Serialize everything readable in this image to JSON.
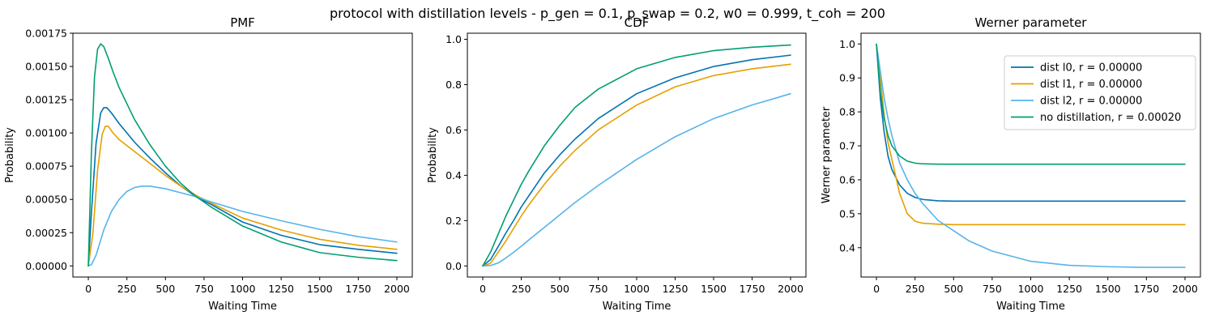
{
  "suptitle": "protocol with distillation levels - p_gen = 0.1, p_swap = 0.2, w0 = 0.999, t_coh = 200",
  "chart_data": [
    {
      "type": "line",
      "title": "PMF",
      "xlabel": "Waiting Time",
      "ylabel": "Probability",
      "xlim": [
        -100,
        2100
      ],
      "ylim": [
        -8.35e-05,
        0.00175
      ],
      "xticks": [
        0,
        250,
        500,
        750,
        1000,
        1250,
        1500,
        1750,
        2000
      ],
      "xtick_labels": [
        "0",
        "250",
        "500",
        "750",
        "1000",
        "1250",
        "1500",
        "1750",
        "2000"
      ],
      "yticks": [
        0,
        0.00025,
        0.0005,
        0.00075,
        0.001,
        0.00125,
        0.0015,
        0.00175
      ],
      "ytick_labels": [
        "0.00000",
        "0.00025",
        "0.00050",
        "0.00075",
        "0.00100",
        "0.00125",
        "0.00150",
        "0.00175"
      ],
      "grid": false,
      "series": [
        {
          "color": "#0072B2",
          "x": [
            0,
            20,
            50,
            80,
            100,
            120,
            150,
            200,
            300,
            400,
            500,
            600,
            700,
            750,
            800,
            1000,
            1250,
            1500,
            1750,
            2000
          ],
          "values": [
            0,
            0.0004,
            0.00092,
            0.00115,
            0.00119,
            0.00119,
            0.00115,
            0.00107,
            0.00093,
            0.00081,
            0.0007,
            0.0006,
            0.00052,
            0.00049,
            0.00046,
            0.00033,
            0.00023,
            0.00016,
            0.000125,
            9.5e-05
          ]
        },
        {
          "color": "#E69F00",
          "x": [
            0,
            30,
            60,
            90,
            110,
            130,
            160,
            200,
            300,
            400,
            500,
            600,
            700,
            750,
            800,
            1000,
            1250,
            1500,
            1750,
            2000
          ],
          "values": [
            0,
            0.00025,
            0.00072,
            0.00099,
            0.00105,
            0.00105,
            0.001,
            0.00095,
            0.00086,
            0.00077,
            0.00068,
            0.0006,
            0.00053,
            0.0005,
            0.00047,
            0.00036,
            0.00027,
            0.0002,
            0.000155,
            0.000125
          ]
        },
        {
          "color": "#56B4E9",
          "x": [
            0,
            20,
            50,
            100,
            150,
            200,
            250,
            300,
            350,
            400,
            450,
            500,
            600,
            700,
            750,
            800,
            1000,
            1250,
            1500,
            1750,
            2000
          ],
          "values": [
            0,
            1e-05,
            8e-05,
            0.00027,
            0.00041,
            0.0005,
            0.00056,
            0.00059,
            0.0006,
            0.0006,
            0.00059,
            0.00058,
            0.00055,
            0.00052,
            0.0005,
            0.00048,
            0.00041,
            0.00034,
            0.000275,
            0.00022,
            0.00018
          ]
        },
        {
          "color": "#009E73",
          "x": [
            0,
            20,
            40,
            60,
            80,
            100,
            130,
            160,
            200,
            300,
            400,
            500,
            600,
            700,
            750,
            800,
            1000,
            1250,
            1500,
            1750,
            2000
          ],
          "values": [
            0,
            0.00085,
            0.00142,
            0.00163,
            0.00167,
            0.00165,
            0.00156,
            0.00146,
            0.00134,
            0.0011,
            0.00091,
            0.00075,
            0.00062,
            0.00052,
            0.00048,
            0.00044,
            0.0003,
            0.00018,
            0.0001,
            6.5e-05,
            4e-05
          ]
        }
      ]
    },
    {
      "type": "line",
      "title": "CDF",
      "xlabel": "Waiting Time",
      "ylabel": "Probability",
      "xlim": [
        -100,
        2100
      ],
      "ylim": [
        -0.0489,
        1.0269
      ],
      "xticks": [
        0,
        250,
        500,
        750,
        1000,
        1250,
        1500,
        1750,
        2000
      ],
      "xtick_labels": [
        "0",
        "250",
        "500",
        "750",
        "1000",
        "1250",
        "1500",
        "1750",
        "2000"
      ],
      "yticks": [
        0,
        0.2,
        0.4,
        0.6,
        0.8,
        1.0
      ],
      "ytick_labels": [
        "0.0",
        "0.2",
        "0.4",
        "0.6",
        "0.8",
        "1.0"
      ],
      "grid": false,
      "series": [
        {
          "color": "#0072B2",
          "x": [
            0,
            50,
            100,
            150,
            200,
            250,
            300,
            400,
            500,
            600,
            750,
            1000,
            1250,
            1500,
            1750,
            2000
          ],
          "values": [
            0,
            0.028,
            0.085,
            0.145,
            0.2,
            0.26,
            0.31,
            0.41,
            0.49,
            0.56,
            0.65,
            0.76,
            0.83,
            0.88,
            0.91,
            0.93
          ]
        },
        {
          "color": "#E69F00",
          "x": [
            0,
            50,
            100,
            150,
            200,
            250,
            300,
            400,
            500,
            600,
            750,
            1000,
            1250,
            1500,
            1750,
            2000
          ],
          "values": [
            0,
            0.012,
            0.06,
            0.11,
            0.165,
            0.22,
            0.27,
            0.36,
            0.44,
            0.51,
            0.6,
            0.71,
            0.79,
            0.84,
            0.87,
            0.89
          ]
        },
        {
          "color": "#56B4E9",
          "x": [
            0,
            50,
            100,
            150,
            200,
            250,
            300,
            400,
            500,
            600,
            750,
            1000,
            1250,
            1500,
            1750,
            2000
          ],
          "values": [
            0,
            0.002,
            0.013,
            0.035,
            0.06,
            0.087,
            0.115,
            0.17,
            0.225,
            0.28,
            0.355,
            0.47,
            0.57,
            0.65,
            0.71,
            0.76
          ]
        },
        {
          "color": "#009E73",
          "x": [
            0,
            50,
            100,
            150,
            200,
            250,
            300,
            400,
            500,
            600,
            750,
            1000,
            1250,
            1500,
            1750,
            2000
          ],
          "values": [
            0,
            0.06,
            0.14,
            0.22,
            0.29,
            0.36,
            0.42,
            0.53,
            0.62,
            0.7,
            0.78,
            0.87,
            0.92,
            0.95,
            0.965,
            0.975
          ]
        }
      ]
    },
    {
      "type": "line",
      "title": "Werner parameter",
      "xlabel": "Waiting Time",
      "ylabel": "Werner parameter",
      "xlim": [
        -100,
        2100
      ],
      "ylim": [
        0.3136,
        1.0317
      ],
      "xticks": [
        0,
        250,
        500,
        750,
        1000,
        1250,
        1500,
        1750,
        2000
      ],
      "xtick_labels": [
        "0",
        "250",
        "500",
        "750",
        "1000",
        "1250",
        "1500",
        "1750",
        "2000"
      ],
      "yticks": [
        0.4,
        0.5,
        0.6,
        0.7,
        0.8,
        0.9,
        1.0
      ],
      "ytick_labels": [
        "0.4",
        "0.5",
        "0.6",
        "0.7",
        "0.8",
        "0.9",
        "1.0"
      ],
      "grid": false,
      "legend_position": "top-right",
      "series": [
        {
          "name": "dist l0, r = 0.00000",
          "color": "#0072B2",
          "x": [
            0,
            25,
            50,
            75,
            100,
            150,
            200,
            250,
            300,
            400,
            500,
            750,
            1000,
            1500,
            2000
          ],
          "values": [
            0.999,
            0.84,
            0.74,
            0.67,
            0.63,
            0.585,
            0.56,
            0.548,
            0.542,
            0.538,
            0.537,
            0.537,
            0.537,
            0.537,
            0.537
          ]
        },
        {
          "name": "dist l1, r = 0.00000",
          "color": "#E69F00",
          "x": [
            0,
            25,
            50,
            75,
            100,
            150,
            200,
            250,
            300,
            400,
            500,
            750,
            1000,
            1500,
            2000
          ],
          "values": [
            0.999,
            0.9,
            0.79,
            0.71,
            0.66,
            0.56,
            0.5,
            0.478,
            0.472,
            0.469,
            0.468,
            0.468,
            0.468,
            0.468,
            0.468
          ]
        },
        {
          "name": "dist l2, r = 0.00000",
          "color": "#56B4E9",
          "x": [
            0,
            25,
            50,
            75,
            100,
            150,
            200,
            250,
            300,
            400,
            500,
            600,
            750,
            1000,
            1250,
            1500,
            1750,
            2000
          ],
          "values": [
            0.999,
            0.92,
            0.84,
            0.78,
            0.73,
            0.65,
            0.6,
            0.56,
            0.53,
            0.48,
            0.45,
            0.42,
            0.39,
            0.36,
            0.348,
            0.344,
            0.342,
            0.342
          ]
        },
        {
          "name": "no distillation, r = 0.00020",
          "color": "#009E73",
          "x": [
            0,
            25,
            50,
            75,
            100,
            150,
            200,
            250,
            300,
            400,
            500,
            750,
            1000,
            1500,
            2000
          ],
          "values": [
            0.999,
            0.86,
            0.78,
            0.73,
            0.7,
            0.67,
            0.655,
            0.649,
            0.647,
            0.646,
            0.646,
            0.646,
            0.646,
            0.646,
            0.646
          ]
        }
      ]
    }
  ]
}
